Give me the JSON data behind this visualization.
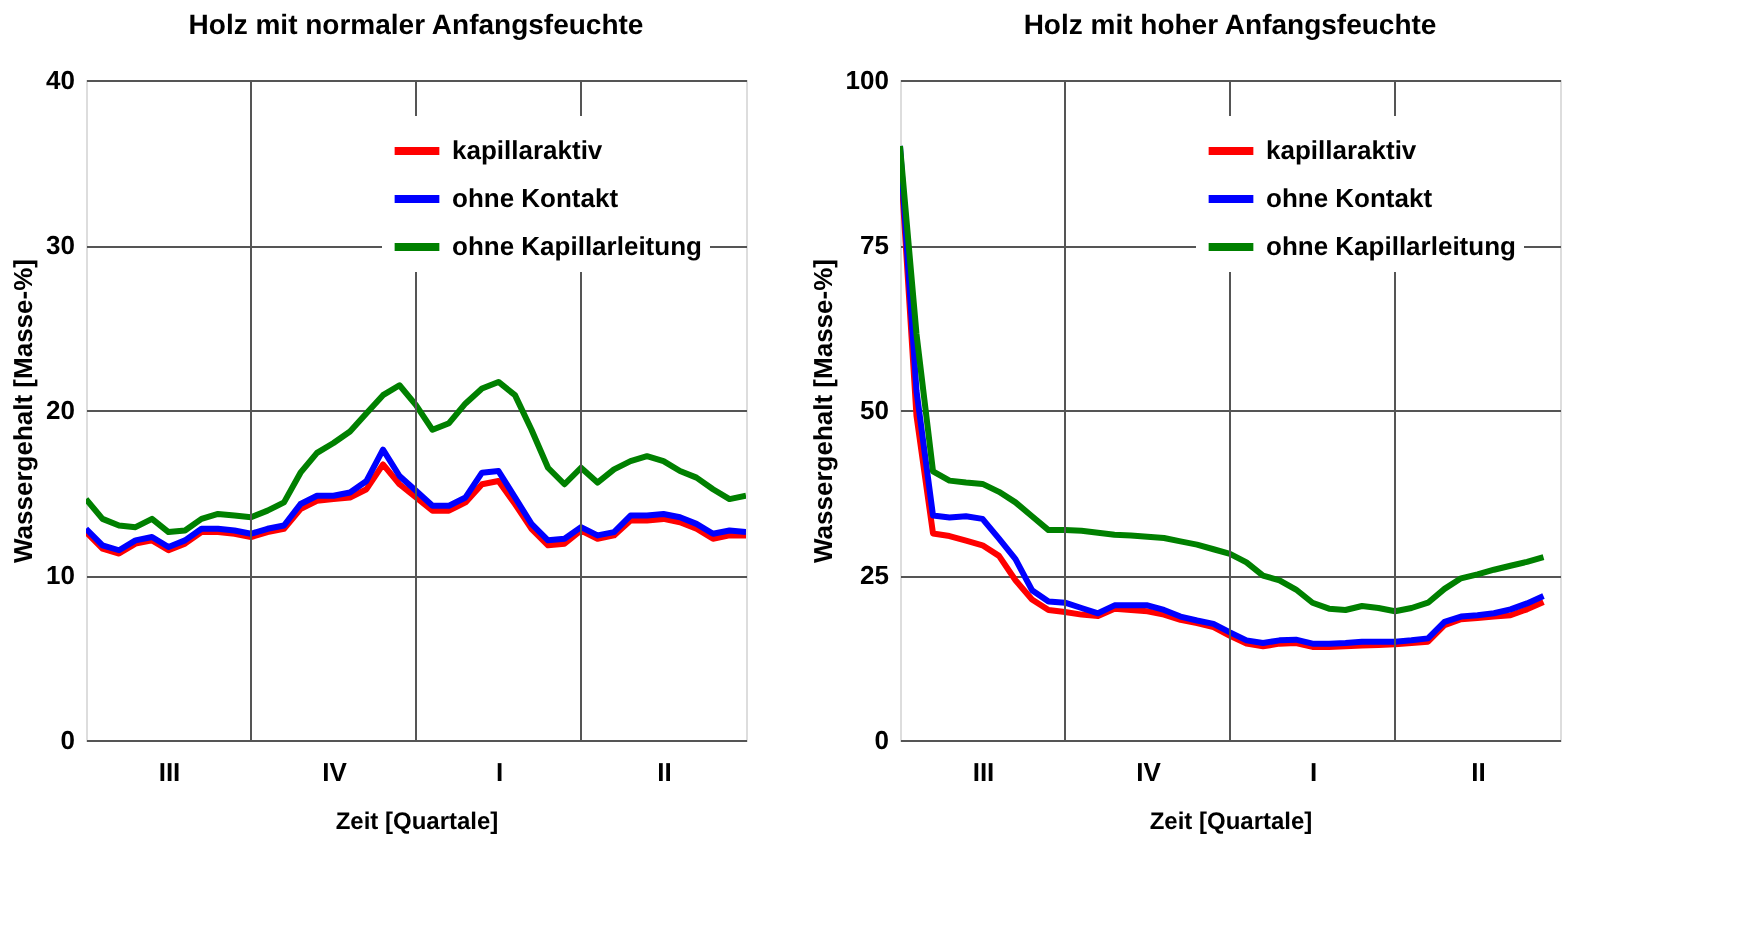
{
  "chart_data": [
    {
      "type": "line",
      "title": "Holz mit normaler Anfangsfeuchte",
      "xlabel": "Zeit [Quartale]",
      "ylabel": "Wassergehalt [Masse-%]",
      "categories": [
        null,
        null,
        null,
        null,
        null,
        "III",
        null,
        null,
        null,
        null,
        null,
        null,
        null,
        null,
        null,
        "IV",
        null,
        null,
        null,
        null,
        null,
        null,
        null,
        null,
        null,
        "I",
        null,
        null,
        null,
        null,
        null,
        null,
        null,
        null,
        null,
        "II",
        null,
        null,
        null,
        null,
        null
      ],
      "ylim": [
        0,
        40
      ],
      "yticks": [
        0,
        10,
        20,
        30,
        40
      ],
      "grid": true,
      "legend": "top right",
      "line_style": "solid",
      "marker": "none",
      "series": [
        {
          "name": "kapillaraktiv",
          "color": "#ff0000",
          "values": [
            12.6,
            11.6,
            11.3,
            11.9,
            12.1,
            11.5,
            11.9,
            12.6,
            12.6,
            12.5,
            12.3,
            12.6,
            12.8,
            14.0,
            14.5,
            14.6,
            14.7,
            15.2,
            16.7,
            15.5,
            14.7,
            13.9,
            13.9,
            14.4,
            15.5,
            15.7,
            14.3,
            12.8,
            11.8,
            11.9,
            12.7,
            12.2,
            12.4,
            13.3,
            13.3,
            13.4,
            13.2,
            12.8,
            12.2,
            12.4,
            12.4
          ]
        },
        {
          "name": "ohne Kontakt",
          "color": "#0000ff",
          "values": [
            12.8,
            11.8,
            11.5,
            12.1,
            12.3,
            11.7,
            12.1,
            12.8,
            12.8,
            12.7,
            12.5,
            12.8,
            13.0,
            14.3,
            14.8,
            14.8,
            15.0,
            15.7,
            17.6,
            16.0,
            15.1,
            14.2,
            14.2,
            14.7,
            16.2,
            16.3,
            14.7,
            13.1,
            12.1,
            12.2,
            12.9,
            12.4,
            12.6,
            13.6,
            13.6,
            13.7,
            13.5,
            13.1,
            12.5,
            12.7,
            12.6
          ]
        },
        {
          "name": "ohne Kapillarleitung",
          "color": "#008000",
          "values": [
            14.6,
            13.4,
            13.0,
            12.9,
            13.4,
            12.6,
            12.7,
            13.4,
            13.7,
            13.6,
            13.5,
            13.9,
            14.4,
            16.2,
            17.4,
            18.0,
            18.7,
            19.8,
            20.9,
            21.5,
            20.3,
            18.8,
            19.2,
            20.4,
            21.3,
            21.7,
            20.9,
            18.8,
            16.5,
            15.5,
            16.5,
            15.6,
            16.4,
            16.9,
            17.2,
            16.9,
            16.3,
            15.9,
            15.2,
            14.6,
            14.8
          ]
        }
      ]
    },
    {
      "type": "line",
      "title": "Holz mit hoher Anfangsfeuchte",
      "xlabel": "Zeit [Quartale]",
      "ylabel": "Wassergehalt [Masse-%]",
      "categories": [
        null,
        null,
        null,
        null,
        null,
        "III",
        null,
        null,
        null,
        null,
        null,
        null,
        null,
        null,
        null,
        "IV",
        null,
        null,
        null,
        null,
        null,
        null,
        null,
        null,
        null,
        "I",
        null,
        null,
        null,
        null,
        null,
        null,
        null,
        null,
        null,
        "II",
        null,
        null,
        null,
        null,
        null
      ],
      "ylim": [
        0,
        100
      ],
      "yticks": [
        0,
        25,
        50,
        75,
        100
      ],
      "grid": true,
      "legend": "top right",
      "line_style": "solid",
      "marker": "none",
      "series": [
        {
          "name": "kapillaraktiv",
          "color": "#ff0000",
          "values": [
            89,
            49.1,
            31.3,
            30.9,
            30.2,
            29.5,
            27.9,
            24.2,
            21.3,
            19.7,
            19.4,
            19.0,
            18.8,
            19.9,
            19.7,
            19.5,
            19.0,
            18.2,
            17.7,
            17.1,
            15.8,
            14.6,
            14.2,
            14.6,
            14.7,
            14.1,
            14.1,
            14.2,
            14.3,
            14.4,
            14.5,
            14.7,
            14.9,
            17.4,
            18.3,
            18.5,
            18.7,
            18.9,
            19.8,
            20.9,
            null
          ]
        },
        {
          "name": "ohne Kontakt",
          "color": "#0000ff",
          "values": [
            90,
            52.9,
            34.0,
            33.7,
            33.9,
            33.5,
            30.5,
            27.4,
            22.7,
            21.0,
            20.8,
            20.0,
            19.2,
            20.4,
            20.4,
            20.4,
            19.7,
            18.7,
            18.1,
            17.6,
            16.3,
            15.1,
            14.7,
            15.1,
            15.2,
            14.6,
            14.6,
            14.7,
            14.9,
            14.9,
            14.9,
            15.1,
            15.4,
            17.9,
            18.7,
            18.9,
            19.2,
            19.8,
            20.7,
            21.8,
            null
          ]
        },
        {
          "name": "ohne Kapillarleitung",
          "color": "#008000",
          "values": [
            90,
            61.5,
            40.7,
            39.3,
            39.0,
            38.8,
            37.6,
            36.0,
            33.9,
            31.8,
            31.8,
            31.7,
            31.4,
            31.1,
            31.0,
            30.8,
            30.6,
            30.1,
            29.6,
            28.9,
            28.2,
            26.9,
            24.9,
            24.2,
            22.8,
            20.8,
            19.9,
            19.7,
            20.3,
            20.0,
            19.5,
            20.0,
            20.8,
            22.9,
            24.5,
            25.1,
            25.8,
            26.4,
            27.0,
            27.7,
            null
          ]
        }
      ]
    }
  ]
}
